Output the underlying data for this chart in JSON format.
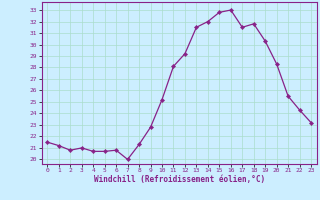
{
  "x": [
    0,
    1,
    2,
    3,
    4,
    5,
    6,
    7,
    8,
    9,
    10,
    11,
    12,
    13,
    14,
    15,
    16,
    17,
    18,
    19,
    20,
    21,
    22,
    23
  ],
  "y": [
    21.5,
    21.2,
    20.8,
    21.0,
    20.7,
    20.7,
    20.8,
    20.0,
    21.3,
    22.8,
    25.2,
    28.1,
    29.2,
    31.5,
    32.0,
    32.8,
    33.0,
    31.5,
    31.8,
    30.3,
    28.3,
    25.5,
    24.3,
    23.2
  ],
  "line_color": "#882288",
  "marker": "D",
  "marker_size": 2.2,
  "linewidth": 0.9,
  "bg_color": "#cceeff",
  "grid_color": "#aaddcc",
  "xlabel": "Windchill (Refroidissement éolien,°C)",
  "xlabel_color": "#882288",
  "tick_color": "#882288",
  "ylabel_ticks": [
    20,
    21,
    22,
    23,
    24,
    25,
    26,
    27,
    28,
    29,
    30,
    31,
    32,
    33
  ],
  "xlim": [
    -0.5,
    23.5
  ],
  "ylim": [
    19.6,
    33.7
  ],
  "spine_color": "#882288"
}
